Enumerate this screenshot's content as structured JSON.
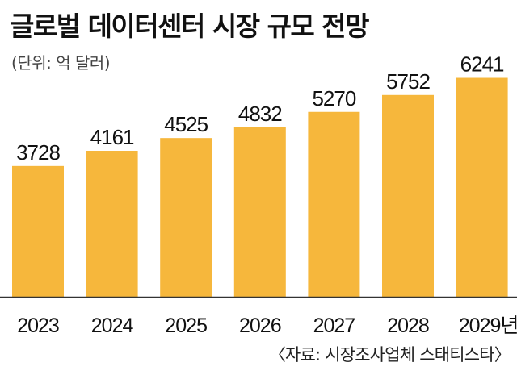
{
  "title": "글로벌 데이터센터 시장 규모 전망",
  "unit_label": "(단위: 억 달러)",
  "source": "〈자료: 시장조사업체 스태티스타〉",
  "colors": {
    "bar": "#f6b73c",
    "baseline": "#333333"
  },
  "chart_data": {
    "type": "bar",
    "categories": [
      "2023",
      "2024",
      "2025",
      "2026",
      "2027",
      "2028",
      "2029년"
    ],
    "values": [
      3728,
      4161,
      4525,
      4832,
      5270,
      5752,
      6241
    ],
    "title": "글로벌 데이터센터 시장 규모 전망",
    "ylabel": "(단위: 억 달러)",
    "grid": false,
    "legend": "none"
  }
}
